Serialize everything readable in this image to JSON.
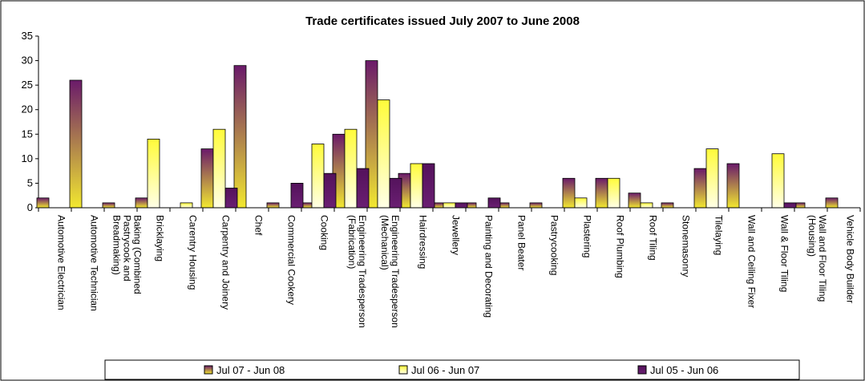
{
  "chart_data": {
    "type": "bar",
    "title": "Trade certificates issued July 2007 to June 2008",
    "xlabel": "",
    "ylabel": "",
    "ylim": [
      0,
      35
    ],
    "yticks": [
      0,
      5,
      10,
      15,
      20,
      25,
      30,
      35
    ],
    "grid": false,
    "legend_position": "bottom",
    "categories": [
      "Automotive Electrician",
      "Automotive Technician",
      "Baking (Combined Pastrycook and Breadmaking)",
      "Bricklaying",
      "Carentry Housing",
      "Carpentry and Joinery",
      "Chef",
      "Commercial Cookery",
      "Cooking",
      "Engineering Tradesperson (Fabrication)",
      "Engineering Tradesperson (Mechanical)",
      "Hairdressing",
      "Jewellery",
      "Painting and Decorating",
      "Panel Beater",
      "Pastrycooking",
      "Plastering",
      "Roof Plumbing",
      "Roof Tiling",
      "Stonemasonry",
      "Tilelaying",
      "Wall and Ceiling Fixer",
      "Wall & Floor Tiling",
      "Wall and Floor Tiling (Housing)",
      "Vehicle Body Builder"
    ],
    "series": [
      {
        "name": "Jul 07 - Jun 08",
        "color": "#8a6a20",
        "values": [
          2,
          26,
          1,
          2,
          0,
          12,
          29,
          1,
          1,
          15,
          30,
          7,
          1,
          1,
          1,
          1,
          6,
          6,
          3,
          1,
          8,
          9,
          0,
          1,
          2
        ]
      },
      {
        "name": "Jul 06 - Jun 07",
        "color": "#ffff66",
        "values": [
          0,
          0,
          0,
          14,
          1,
          16,
          0,
          0,
          13,
          16,
          22,
          9,
          1,
          0,
          0,
          0,
          2,
          6,
          1,
          0,
          12,
          0,
          11,
          0,
          0
        ]
      },
      {
        "name": "Jul 05 - Jun 06",
        "color": "#5c1060",
        "values": [
          0,
          0,
          0,
          0,
          0,
          4,
          0,
          5,
          7,
          8,
          6,
          9,
          1,
          2,
          0,
          0,
          0,
          0,
          0,
          0,
          0,
          0,
          1,
          0,
          0
        ]
      }
    ]
  }
}
